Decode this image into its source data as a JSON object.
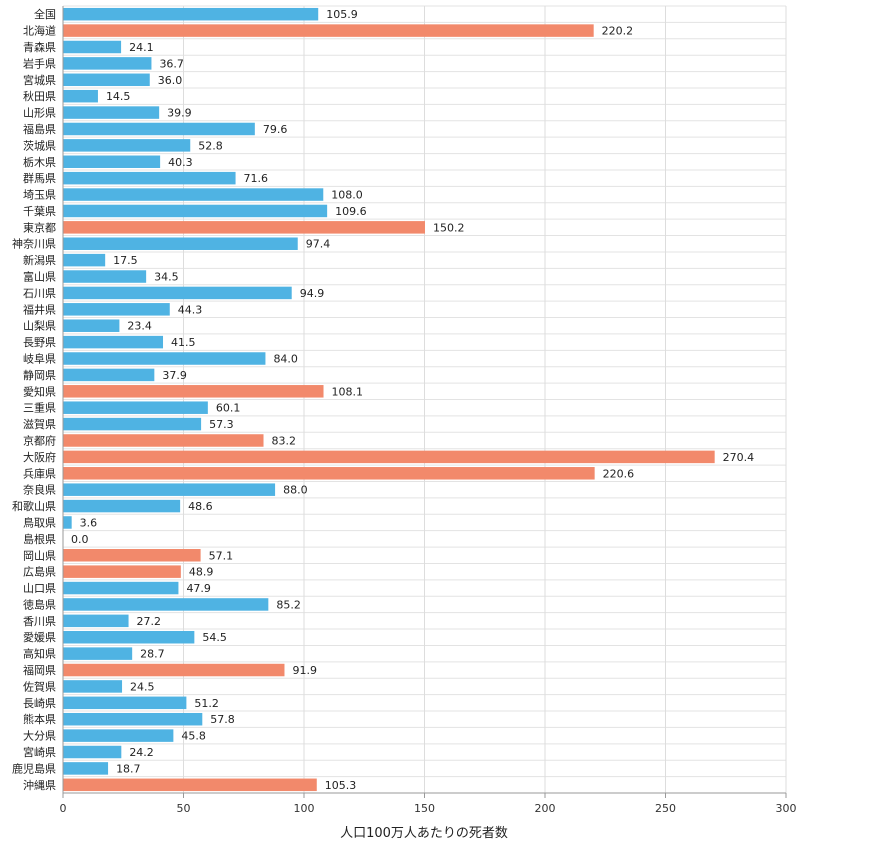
{
  "chart_data": {
    "type": "bar",
    "orientation": "horizontal",
    "xlabel": "人口100万人あたりの死者数",
    "xlim": [
      0,
      300
    ],
    "xticks": [
      0,
      50,
      100,
      150,
      200,
      250,
      300
    ],
    "grid": true,
    "colors": {
      "normal": "#4fb3e3",
      "highlight": "#f2896b"
    },
    "categories": [
      "全国",
      "北海道",
      "青森県",
      "岩手県",
      "宮城県",
      "秋田県",
      "山形県",
      "福島県",
      "茨城県",
      "栃木県",
      "群馬県",
      "埼玉県",
      "千葉県",
      "東京都",
      "神奈川県",
      "新潟県",
      "富山県",
      "石川県",
      "福井県",
      "山梨県",
      "長野県",
      "岐阜県",
      "静岡県",
      "愛知県",
      "三重県",
      "滋賀県",
      "京都府",
      "大阪府",
      "兵庫県",
      "奈良県",
      "和歌山県",
      "鳥取県",
      "島根県",
      "岡山県",
      "広島県",
      "山口県",
      "徳島県",
      "香川県",
      "愛媛県",
      "高知県",
      "福岡県",
      "佐賀県",
      "長崎県",
      "熊本県",
      "大分県",
      "宮崎県",
      "鹿児島県",
      "沖縄県"
    ],
    "values": [
      105.9,
      220.2,
      24.1,
      36.7,
      36.0,
      14.5,
      39.9,
      79.6,
      52.8,
      40.3,
      71.6,
      108.0,
      109.6,
      150.2,
      97.4,
      17.5,
      34.5,
      94.9,
      44.3,
      23.4,
      41.5,
      84.0,
      37.9,
      108.1,
      60.1,
      57.3,
      83.2,
      270.4,
      220.6,
      88.0,
      48.6,
      3.6,
      0.0,
      57.1,
      48.9,
      47.9,
      85.2,
      27.2,
      54.5,
      28.7,
      91.9,
      24.5,
      51.2,
      57.8,
      45.8,
      24.2,
      18.7,
      105.3
    ],
    "value_labels": [
      "105.9",
      "220.2",
      "24.1",
      "36.7",
      "36.0",
      "14.5",
      "39.9",
      "79.6",
      "52.8",
      "40.3",
      "71.6",
      "108.0",
      "109.6",
      "150.2",
      "97.4",
      "17.5",
      "34.5",
      "94.9",
      "44.3",
      "23.4",
      "41.5",
      "84.0",
      "37.9",
      "108.1",
      "60.1",
      "57.3",
      "83.2",
      "270.4",
      "220.6",
      "88.0",
      "48.6",
      "3.6",
      "0.0",
      "57.1",
      "48.9",
      "47.9",
      "85.2",
      "27.2",
      "54.5",
      "28.7",
      "91.9",
      "24.5",
      "51.2",
      "57.8",
      "45.8",
      "24.2",
      "18.7",
      "105.3"
    ],
    "highlighted": [
      "北海道",
      "東京都",
      "愛知県",
      "京都府",
      "大阪府",
      "兵庫県",
      "岡山県",
      "広島県",
      "福岡県",
      "沖縄県"
    ]
  }
}
